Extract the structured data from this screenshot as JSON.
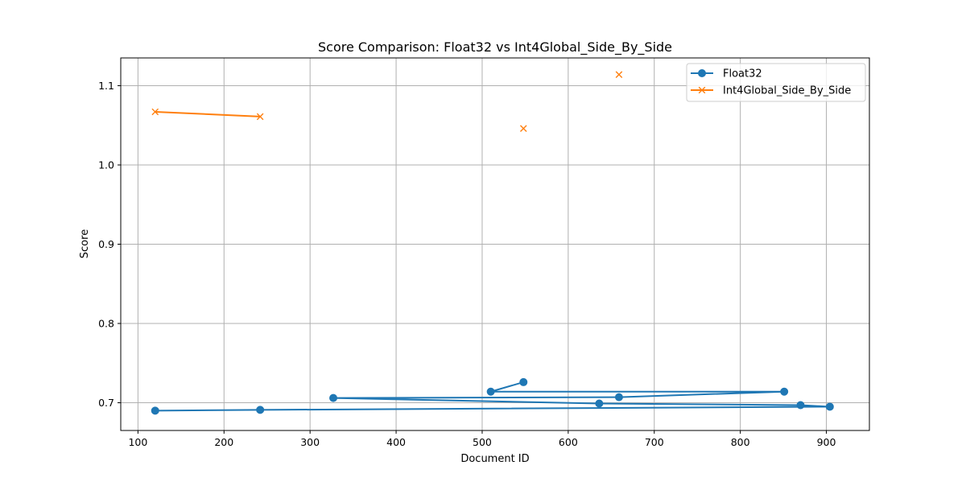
{
  "chart_data": {
    "type": "line",
    "title": "Score Comparison: Float32 vs Int4Global_Side_By_Side",
    "xlabel": "Document ID",
    "ylabel": "Score",
    "xlim": [
      80,
      950
    ],
    "ylim": [
      0.665,
      1.135
    ],
    "xticks": [
      100,
      200,
      300,
      400,
      500,
      600,
      700,
      800,
      900
    ],
    "yticks": [
      0.7,
      0.8,
      0.9,
      1.0,
      1.1
    ],
    "ytick_labels": [
      "0.7",
      "0.8",
      "0.9",
      "1.0",
      "1.1"
    ],
    "grid": true,
    "legend_position": "top-right",
    "series": [
      {
        "name": "Float32",
        "color": "#1f77b4",
        "marker": "circle",
        "connected": true,
        "points": [
          {
            "x": 548,
            "y": 0.726
          },
          {
            "x": 510,
            "y": 0.714
          },
          {
            "x": 851,
            "y": 0.714
          },
          {
            "x": 659,
            "y": 0.707
          },
          {
            "x": 327,
            "y": 0.706
          },
          {
            "x": 636,
            "y": 0.699
          },
          {
            "x": 870,
            "y": 0.697
          },
          {
            "x": 904,
            "y": 0.695
          },
          {
            "x": 242,
            "y": 0.691
          },
          {
            "x": 120,
            "y": 0.69
          }
        ]
      },
      {
        "name": "Int4Global_Side_By_Side",
        "color": "#ff7f0e",
        "marker": "x",
        "connected": false,
        "points": [
          {
            "x": 659,
            "y": 1.114
          },
          {
            "x": 120,
            "y": 1.067
          },
          {
            "x": 242,
            "y": 1.061
          },
          {
            "x": 548,
            "y": 1.046
          }
        ],
        "line_segment": [
          {
            "x": 120,
            "y": 1.067
          },
          {
            "x": 242,
            "y": 1.061
          }
        ]
      }
    ]
  }
}
